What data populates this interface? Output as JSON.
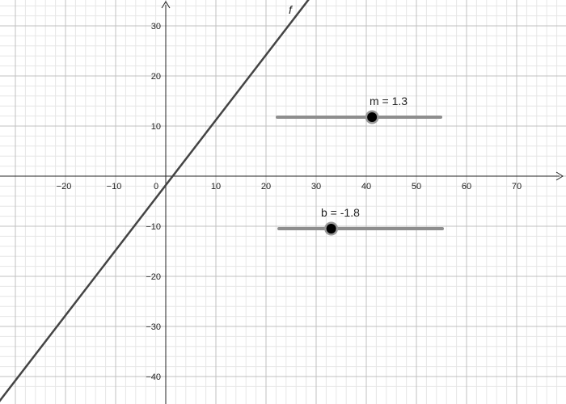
{
  "graph": {
    "x_axis": {
      "min": -30,
      "max": 78,
      "major_step": 10,
      "minor_step": 2,
      "tick_labels": [
        "−20",
        "−10",
        "0",
        "10",
        "20",
        "30",
        "40",
        "50",
        "60",
        "70"
      ]
    },
    "y_axis": {
      "min": -43,
      "max": 35,
      "major_step": 10,
      "minor_step": 2,
      "tick_labels": [
        "30",
        "20",
        "10",
        "−10",
        "−20",
        "−30",
        "−40"
      ]
    },
    "function": {
      "label": "f",
      "slope": 1.3,
      "intercept": -1.8
    }
  },
  "sliders": [
    {
      "name": "m",
      "caption": "m = 1.3",
      "value": 1.3,
      "fraction": 0.58
    },
    {
      "name": "b",
      "caption": "b = -1.8",
      "value": -1.8,
      "fraction": 0.32
    }
  ],
  "colors": {
    "minor_grid": "#e6e6e6",
    "major_grid": "#c0c0c0",
    "axis": "#252525",
    "function_line": "#444444",
    "slider_track": "#8e8e8e",
    "slider_point": "#000000",
    "slider_halo": "#999999"
  }
}
